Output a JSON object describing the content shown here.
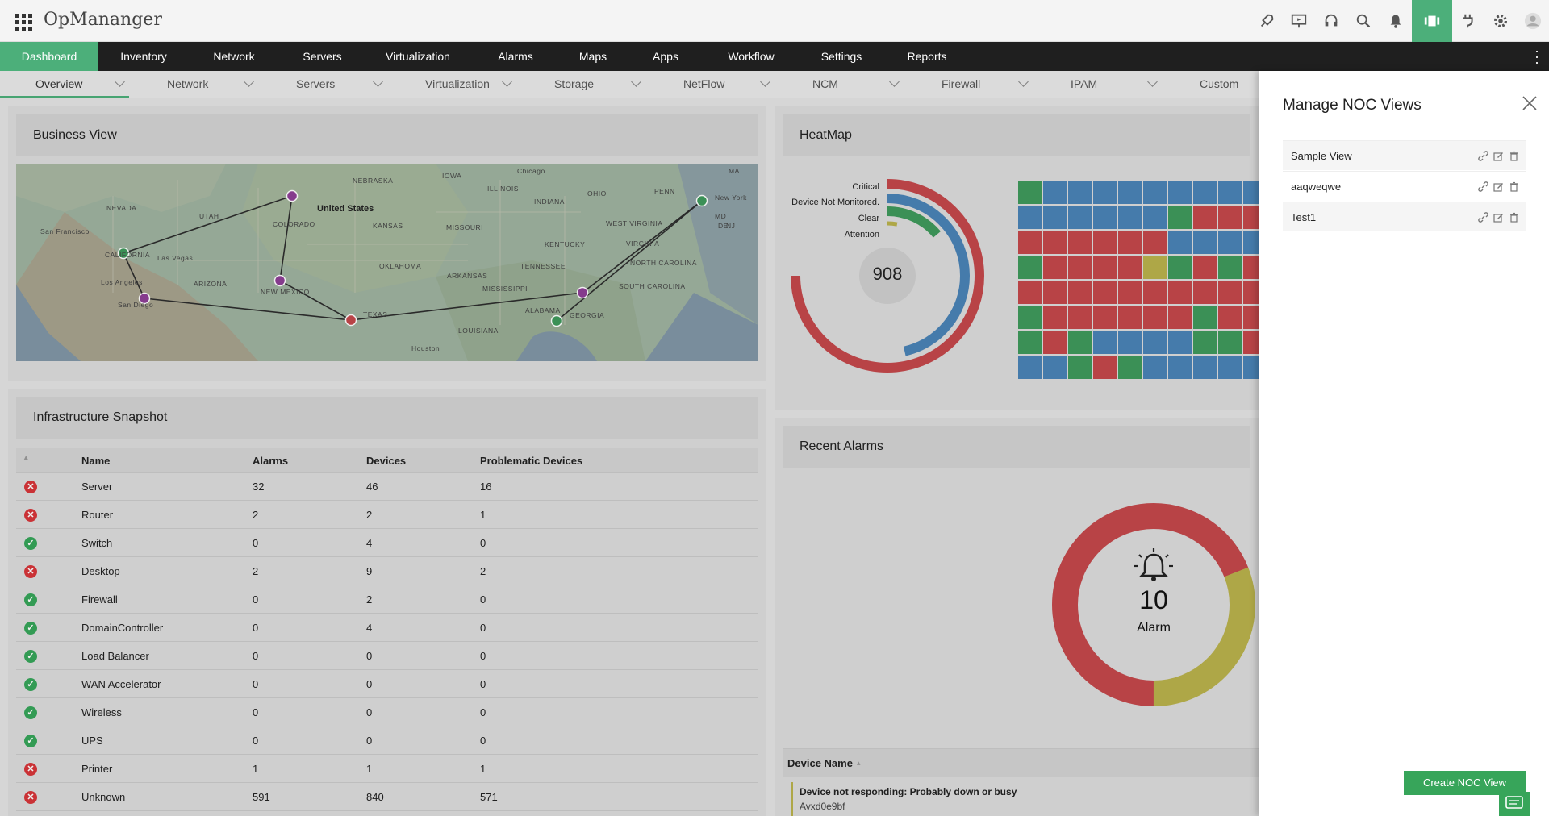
{
  "app": {
    "title": "OpMananger"
  },
  "top_icons": [
    "rocket-icon",
    "presentation-icon",
    "headset-icon",
    "search-icon",
    "bell-icon",
    "noc-view-icon",
    "plug-icon",
    "gear-icon",
    "user-icon"
  ],
  "main_nav": {
    "items": [
      "Dashboard",
      "Inventory",
      "Network",
      "Servers",
      "Virtualization",
      "Alarms",
      "Maps",
      "Apps",
      "Workflow",
      "Settings",
      "Reports"
    ],
    "active": "Dashboard"
  },
  "sub_nav": {
    "items": [
      "Overview",
      "Network",
      "Servers",
      "Virtualization",
      "Storage",
      "NetFlow",
      "NCM",
      "Firewall",
      "IPAM",
      "Custom"
    ],
    "active": "Overview"
  },
  "business_view": {
    "title": "Business View",
    "map_labels": [
      "NEBRASKA",
      "IOWA",
      "Chicago",
      "ILLINOIS",
      "INDIANA",
      "OHIO",
      "PENN",
      "MA",
      "New York",
      "NEVADA",
      "United States",
      "UTAH",
      "COLORADO",
      "KANSAS",
      "MISSOURI",
      "KENTUCKY",
      "WEST VIRGINIA",
      "VIRGINIA",
      "San Francisco",
      "CALIFORNIA",
      "Las Vegas",
      "OKLAHOMA",
      "TENNESSEE",
      "NORTH CAROLINA",
      "Los Angeles",
      "ARIZONA",
      "NEW MEXICO",
      "ARKANSAS",
      "MISSISSIPPI",
      "SOUTH CAROLINA",
      "San Diego",
      "TEXAS",
      "ALABAMA",
      "GEORGIA",
      "LOUISIANA",
      "Houston",
      "MD",
      "DE",
      "NJ"
    ]
  },
  "snapshot": {
    "title": "Infrastructure Snapshot",
    "columns": [
      "Name",
      "Alarms",
      "Devices",
      "Problematic Devices"
    ],
    "rows": [
      {
        "status": "bad",
        "name": "Server",
        "alarms": "32",
        "devices": "46",
        "problematic": "16"
      },
      {
        "status": "bad",
        "name": "Router",
        "alarms": "2",
        "devices": "2",
        "problematic": "1"
      },
      {
        "status": "ok",
        "name": "Switch",
        "alarms": "0",
        "devices": "4",
        "problematic": "0"
      },
      {
        "status": "bad",
        "name": "Desktop",
        "alarms": "2",
        "devices": "9",
        "problematic": "2"
      },
      {
        "status": "ok",
        "name": "Firewall",
        "alarms": "0",
        "devices": "2",
        "problematic": "0"
      },
      {
        "status": "ok",
        "name": "DomainController",
        "alarms": "0",
        "devices": "4",
        "problematic": "0"
      },
      {
        "status": "ok",
        "name": "Load Balancer",
        "alarms": "0",
        "devices": "0",
        "problematic": "0"
      },
      {
        "status": "ok",
        "name": "WAN Accelerator",
        "alarms": "0",
        "devices": "0",
        "problematic": "0"
      },
      {
        "status": "ok",
        "name": "Wireless",
        "alarms": "0",
        "devices": "0",
        "problematic": "0"
      },
      {
        "status": "ok",
        "name": "UPS",
        "alarms": "0",
        "devices": "0",
        "problematic": "0"
      },
      {
        "status": "bad",
        "name": "Printer",
        "alarms": "1",
        "devices": "1",
        "problematic": "1"
      },
      {
        "status": "bad",
        "name": "Unknown",
        "alarms": "591",
        "devices": "840",
        "problematic": "571"
      }
    ]
  },
  "heatmap": {
    "title": "HeatMap",
    "total": "908",
    "legend": [
      "Critical",
      "Device Not Monitored.",
      "Clear",
      "Attention"
    ],
    "colors": {
      "critical": "#c4484b",
      "not_monitored": "#4a83b6",
      "clear": "#3f9a5c",
      "attention": "#b9b24c"
    },
    "grid": [
      "GBBBBBBBBB",
      "BBBBBBGRRR",
      "RRRRRRBBBB",
      "GRRRRYGRGR",
      "RRRRRRRRRR",
      "GRRRRRRGRR",
      "GRGBBBBGGR",
      "BBGRGBBBBB"
    ]
  },
  "recent_alarms": {
    "title": "Recent Alarms",
    "count": "10",
    "label": "Alarm",
    "segments": {
      "critical": 0.69,
      "attention": 0.31
    },
    "column_header": "Device Name",
    "first_alarm": {
      "message": "Device not responding: Probably down or busy",
      "device": "Avxd0e9bf"
    }
  },
  "noc_panel": {
    "title": "Manage NOC Views",
    "views": [
      "Sample View",
      "aaqweqwe",
      "Test1"
    ],
    "create_button": "Create NOC View"
  }
}
